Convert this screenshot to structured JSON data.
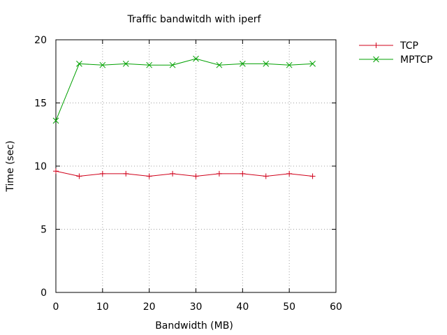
{
  "chart_data": {
    "type": "line",
    "title": "Traffic bandwitdh with iperf",
    "xlabel": "Bandwidth (MB)",
    "ylabel": "Time (sec)",
    "xlim": [
      0,
      60
    ],
    "ylim": [
      0,
      20
    ],
    "xticks": [
      0,
      10,
      20,
      30,
      40,
      50,
      60
    ],
    "yticks": [
      0,
      5,
      10,
      15,
      20
    ],
    "grid": true,
    "legend_position": "outside-top-right",
    "x": [
      0,
      5,
      10,
      15,
      20,
      25,
      30,
      35,
      40,
      45,
      50,
      55
    ],
    "series": [
      {
        "name": "TCP",
        "color": "#d0001a",
        "marker": "plus",
        "values": [
          9.6,
          9.2,
          9.4,
          9.4,
          9.2,
          9.4,
          9.2,
          9.4,
          9.4,
          9.2,
          9.4,
          9.2
        ]
      },
      {
        "name": "MPTCP",
        "color": "#00a000",
        "marker": "cross",
        "values": [
          13.6,
          18.1,
          18.0,
          18.1,
          18.0,
          18.0,
          18.5,
          18.0,
          18.1,
          18.1,
          18.0,
          18.1
        ]
      }
    ]
  }
}
